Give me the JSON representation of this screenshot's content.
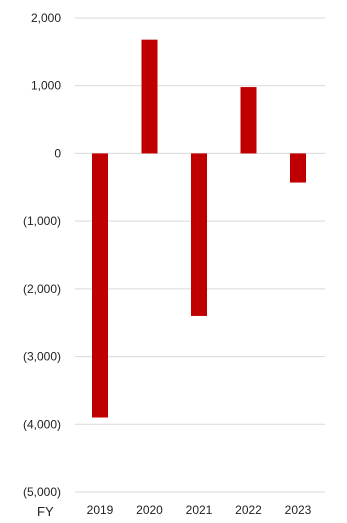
{
  "chart_data": {
    "type": "bar",
    "title": "",
    "xlabel": "FY",
    "ylabel": "",
    "categories": [
      "2019",
      "2020",
      "2021",
      "2022",
      "2023"
    ],
    "values": [
      -3900,
      1680,
      -2400,
      980,
      -430
    ],
    "ylim": [
      -5000,
      2000
    ],
    "yticks": [
      2000,
      1000,
      0,
      -1000,
      -2000,
      -3000,
      -4000,
      -5000
    ],
    "ytick_labels": [
      "2,000",
      "1,000",
      "0",
      "(1,000)",
      "(2,000)",
      "(3,000)",
      "(4,000)",
      "(5,000)"
    ],
    "grid": true,
    "legend": "none",
    "colors": {
      "bar": "#c00000",
      "grid": "#d9d9d9",
      "text": "#222222"
    }
  }
}
